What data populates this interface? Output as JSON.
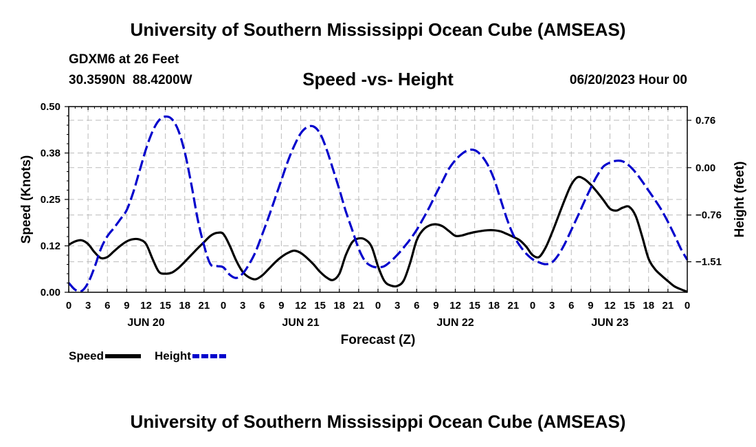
{
  "header": {
    "title": "University of Southern Mississippi Ocean Cube (AMSEAS)",
    "station": "GDXM6 at 26 Feet",
    "coordinates": "30.3590N  88.4200W",
    "subtitle": "Speed -vs- Height",
    "run_date": "06/20/2023 Hour 00"
  },
  "footer": {
    "title": "University of Southern Mississippi Ocean Cube (AMSEAS)"
  },
  "legend": {
    "speed_label": "Speed",
    "height_label": "Height"
  },
  "colors": {
    "speed": "#000000",
    "height": "#0000cc",
    "grid": "#bbbbbb"
  },
  "chart_data": {
    "type": "line",
    "title": "Speed -vs- Height",
    "xlabel": "Forecast (Z)",
    "ylabel": "Speed (Knots)",
    "y2label": "Height (feet)",
    "xlim": [
      0,
      96
    ],
    "ylim": [
      0,
      0.5
    ],
    "y2lim": [
      -2.0,
      0.98
    ],
    "grid": true,
    "legend_position": "bottom-left",
    "x_tick_labels": [
      "0",
      "3",
      "6",
      "9",
      "12",
      "15",
      "18",
      "21",
      "0",
      "3",
      "6",
      "9",
      "12",
      "15",
      "18",
      "21",
      "0",
      "3",
      "6",
      "9",
      "12",
      "15",
      "18",
      "21",
      "0",
      "3",
      "6",
      "9",
      "12",
      "15",
      "18",
      "21",
      "0"
    ],
    "day_labels": [
      {
        "label": "JUN 20",
        "hour": 12
      },
      {
        "label": "JUN 21",
        "hour": 36
      },
      {
        "label": "JUN 22",
        "hour": 60
      },
      {
        "label": "JUN 23",
        "hour": 84
      }
    ],
    "y_ticks": [
      {
        "value": 0.0,
        "label": "0.00"
      },
      {
        "value": 0.125,
        "label": "0.12"
      },
      {
        "value": 0.25,
        "label": "0.25"
      },
      {
        "value": 0.375,
        "label": "0.38"
      },
      {
        "value": 0.5,
        "label": "0.50"
      }
    ],
    "y2_ticks": [
      {
        "value": -1.51,
        "label": "−1.51"
      },
      {
        "value": -0.76,
        "label": "−0.76"
      },
      {
        "value": 0.0,
        "label": "0.00"
      },
      {
        "value": 0.76,
        "label": "0.76"
      }
    ],
    "series": [
      {
        "name": "Speed",
        "axis": "left",
        "style": "solid",
        "x": [
          0,
          1,
          2,
          3,
          4,
          5,
          6,
          7,
          8,
          9,
          10,
          11,
          12,
          13,
          14,
          15,
          16,
          17,
          18,
          19,
          20,
          21,
          22,
          23,
          24,
          25,
          26,
          27,
          28,
          29,
          30,
          31,
          32,
          33,
          34,
          35,
          36,
          37,
          38,
          39,
          40,
          41,
          42,
          43,
          44,
          45,
          46,
          47,
          48,
          49,
          50,
          51,
          52,
          53,
          54,
          55,
          56,
          57,
          58,
          59,
          60,
          61,
          62,
          63,
          64,
          65,
          66,
          67,
          68,
          69,
          70,
          71,
          72,
          73,
          74,
          75,
          76,
          77,
          78,
          79,
          80,
          81,
          82,
          83,
          84,
          85,
          86,
          87,
          88,
          89,
          90,
          91,
          92,
          93,
          94,
          95,
          96
        ],
        "values": [
          0.128,
          0.137,
          0.14,
          0.13,
          0.108,
          0.092,
          0.095,
          0.11,
          0.125,
          0.137,
          0.143,
          0.142,
          0.13,
          0.09,
          0.055,
          0.05,
          0.053,
          0.065,
          0.082,
          0.1,
          0.118,
          0.135,
          0.152,
          0.16,
          0.157,
          0.125,
          0.085,
          0.055,
          0.04,
          0.035,
          0.045,
          0.062,
          0.08,
          0.095,
          0.106,
          0.112,
          0.106,
          0.092,
          0.075,
          0.055,
          0.04,
          0.033,
          0.05,
          0.1,
          0.135,
          0.145,
          0.142,
          0.123,
          0.07,
          0.03,
          0.018,
          0.017,
          0.032,
          0.08,
          0.14,
          0.168,
          0.18,
          0.183,
          0.178,
          0.165,
          0.152,
          0.153,
          0.158,
          0.162,
          0.165,
          0.167,
          0.167,
          0.164,
          0.157,
          0.149,
          0.14,
          0.123,
          0.1,
          0.095,
          0.12,
          0.16,
          0.205,
          0.25,
          0.29,
          0.31,
          0.305,
          0.29,
          0.27,
          0.248,
          0.225,
          0.22,
          0.228,
          0.23,
          0.205,
          0.15,
          0.09,
          0.062,
          0.045,
          0.03,
          0.016,
          0.008,
          0.001
        ]
      },
      {
        "name": "Height",
        "axis": "right",
        "style": "dashed",
        "x": [
          0,
          1,
          2,
          3,
          4,
          5,
          6,
          7,
          8,
          9,
          10,
          11,
          12,
          13,
          14,
          15,
          16,
          17,
          18,
          19,
          20,
          21,
          22,
          23,
          24,
          25,
          26,
          27,
          28,
          29,
          30,
          31,
          32,
          33,
          34,
          35,
          36,
          37,
          38,
          39,
          40,
          41,
          42,
          43,
          44,
          45,
          46,
          47,
          48,
          49,
          50,
          51,
          52,
          53,
          54,
          55,
          56,
          57,
          58,
          59,
          60,
          61,
          62,
          63,
          64,
          65,
          66,
          67,
          68,
          69,
          70,
          71,
          72,
          73,
          74,
          75,
          76,
          77,
          78,
          79,
          80,
          81,
          82,
          83,
          84,
          85,
          86,
          87,
          88,
          89,
          90,
          91,
          92,
          93,
          94,
          95,
          96
        ],
        "values": [
          -1.85,
          -1.96,
          -1.98,
          -1.85,
          -1.6,
          -1.3,
          -1.1,
          -0.97,
          -0.83,
          -0.68,
          -0.4,
          -0.05,
          0.3,
          0.58,
          0.76,
          0.82,
          0.78,
          0.6,
          0.25,
          -0.25,
          -0.82,
          -1.25,
          -1.55,
          -1.58,
          -1.6,
          -1.72,
          -1.77,
          -1.7,
          -1.55,
          -1.35,
          -1.08,
          -0.8,
          -0.5,
          -0.2,
          0.1,
          0.35,
          0.55,
          0.65,
          0.66,
          0.55,
          0.3,
          -0.02,
          -0.35,
          -0.7,
          -1.0,
          -1.3,
          -1.5,
          -1.58,
          -1.6,
          -1.58,
          -1.5,
          -1.4,
          -1.28,
          -1.15,
          -1.0,
          -0.82,
          -0.63,
          -0.42,
          -0.22,
          -0.02,
          0.12,
          0.22,
          0.28,
          0.28,
          0.2,
          0.05,
          -0.18,
          -0.5,
          -0.82,
          -1.08,
          -1.25,
          -1.38,
          -1.47,
          -1.52,
          -1.55,
          -1.52,
          -1.4,
          -1.22,
          -1.0,
          -0.78,
          -0.55,
          -0.33,
          -0.13,
          0.02,
          0.08,
          0.11,
          0.1,
          0.03,
          -0.08,
          -0.22,
          -0.37,
          -0.52,
          -0.68,
          -0.87,
          -1.08,
          -1.3,
          -1.48
        ]
      }
    ]
  }
}
